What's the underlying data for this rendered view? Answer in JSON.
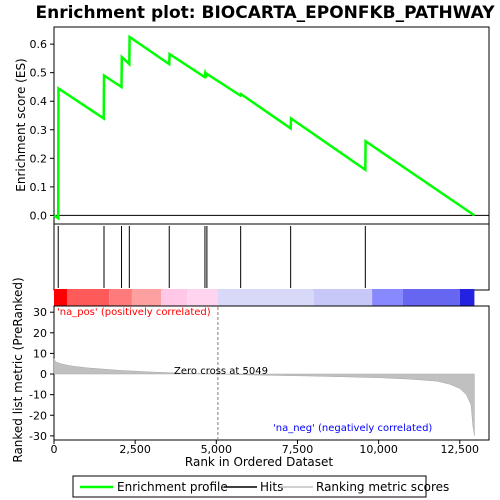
{
  "chart_data": {
    "type": "line",
    "title": "Enrichment plot: BIOCARTA_EPONFKB_PATHWAY",
    "colors": {
      "enrichment_line": "#00ff00",
      "hits": "#000000",
      "metric_fill": "#c0c0c0",
      "pos_label": "#ff0000",
      "neg_label": "#0000ff",
      "zero_line": "#808080"
    },
    "enrichment_panel": {
      "ylabel": "Enrichment score (ES)",
      "ylim": [
        -0.03,
        0.66
      ],
      "yticks": [
        0.0,
        0.1,
        0.2,
        0.3,
        0.4,
        0.5,
        0.6
      ],
      "ytick_labels": [
        "0.0",
        "0.1",
        "0.2",
        "0.3",
        "0.4",
        "0.5",
        "0.6"
      ],
      "series": [
        {
          "name": "Enrichment profile",
          "x": [
            0,
            130,
            140,
            1530,
            1540,
            2080,
            2090,
            2320,
            2330,
            3550,
            3560,
            4640,
            4660,
            4700,
            4720,
            5740,
            5760,
            7290,
            7300,
            9590,
            9600,
            12950
          ],
          "y": [
            0.0,
            -0.01,
            0.445,
            0.34,
            0.49,
            0.45,
            0.555,
            0.53,
            0.625,
            0.53,
            0.565,
            0.485,
            0.5,
            0.49,
            0.495,
            0.42,
            0.425,
            0.305,
            0.34,
            0.16,
            0.26,
            0.0
          ]
        }
      ]
    },
    "hits_panel": {
      "hit_positions": [
        130,
        1540,
        2080,
        2320,
        3550,
        4650,
        4710,
        5750,
        7290,
        9590
      ]
    },
    "heatmap_bar": {
      "segments": [
        {
          "x0": 0,
          "x1": 400,
          "color": "#ff0000"
        },
        {
          "x0": 400,
          "x1": 1700,
          "color": "#ff5a5a"
        },
        {
          "x0": 1700,
          "x1": 2400,
          "color": "#ff7a7a"
        },
        {
          "x0": 2400,
          "x1": 3300,
          "color": "#ffa0a0"
        },
        {
          "x0": 3300,
          "x1": 4100,
          "color": "#ffc8e6"
        },
        {
          "x0": 4100,
          "x1": 5050,
          "color": "#ffd4ee"
        },
        {
          "x0": 5050,
          "x1": 8000,
          "color": "#d8d8f8"
        },
        {
          "x0": 8000,
          "x1": 9800,
          "color": "#c8c8f8"
        },
        {
          "x0": 9800,
          "x1": 10750,
          "color": "#8888ff"
        },
        {
          "x0": 10750,
          "x1": 12500,
          "color": "#6666f0"
        },
        {
          "x0": 12500,
          "x1": 12950,
          "color": "#2222e0"
        }
      ]
    },
    "metric_panel": {
      "ylabel": "Ranked list metric (PreRanked)",
      "xlabel": "Rank in Ordered Dataset",
      "xlim": [
        0,
        13400
      ],
      "ylim": [
        -32,
        33
      ],
      "xticks": [
        0,
        2500,
        5000,
        7500,
        10000,
        12500
      ],
      "xtick_labels": [
        "0",
        "2,500",
        "5,000",
        "7,500",
        "10,000",
        "12,500"
      ],
      "yticks": [
        -30,
        -20,
        -10,
        0,
        10,
        20,
        30
      ],
      "ytick_labels": [
        "-30",
        "-20",
        "-10",
        "0",
        "10",
        "20",
        "30"
      ],
      "metric_curve": {
        "x": [
          0,
          50,
          200,
          500,
          1000,
          2000,
          3000,
          4000,
          5049,
          6000,
          8000,
          10000,
          11000,
          11800,
          12200,
          12500,
          12700,
          12850,
          12900,
          12950
        ],
        "y": [
          7.5,
          6.0,
          5.0,
          4.0,
          3.0,
          1.8,
          1.0,
          0.4,
          0.0,
          -0.4,
          -1.0,
          -1.8,
          -2.5,
          -3.5,
          -5.0,
          -7.0,
          -10.0,
          -15.0,
          -25.0,
          -30.0
        ]
      },
      "zero_cross": 5049,
      "zero_cross_label": "Zero cross at 5049",
      "pos_label": "'na_pos' (positively correlated)",
      "neg_label": "'na_neg' (negatively correlated)"
    },
    "legend": {
      "items": [
        {
          "label": "Enrichment profile",
          "color": "#00ff00"
        },
        {
          "label": "Hits",
          "color": "#000000"
        },
        {
          "label": "Ranking metric scores",
          "color": "#c0c0c0"
        }
      ]
    }
  }
}
